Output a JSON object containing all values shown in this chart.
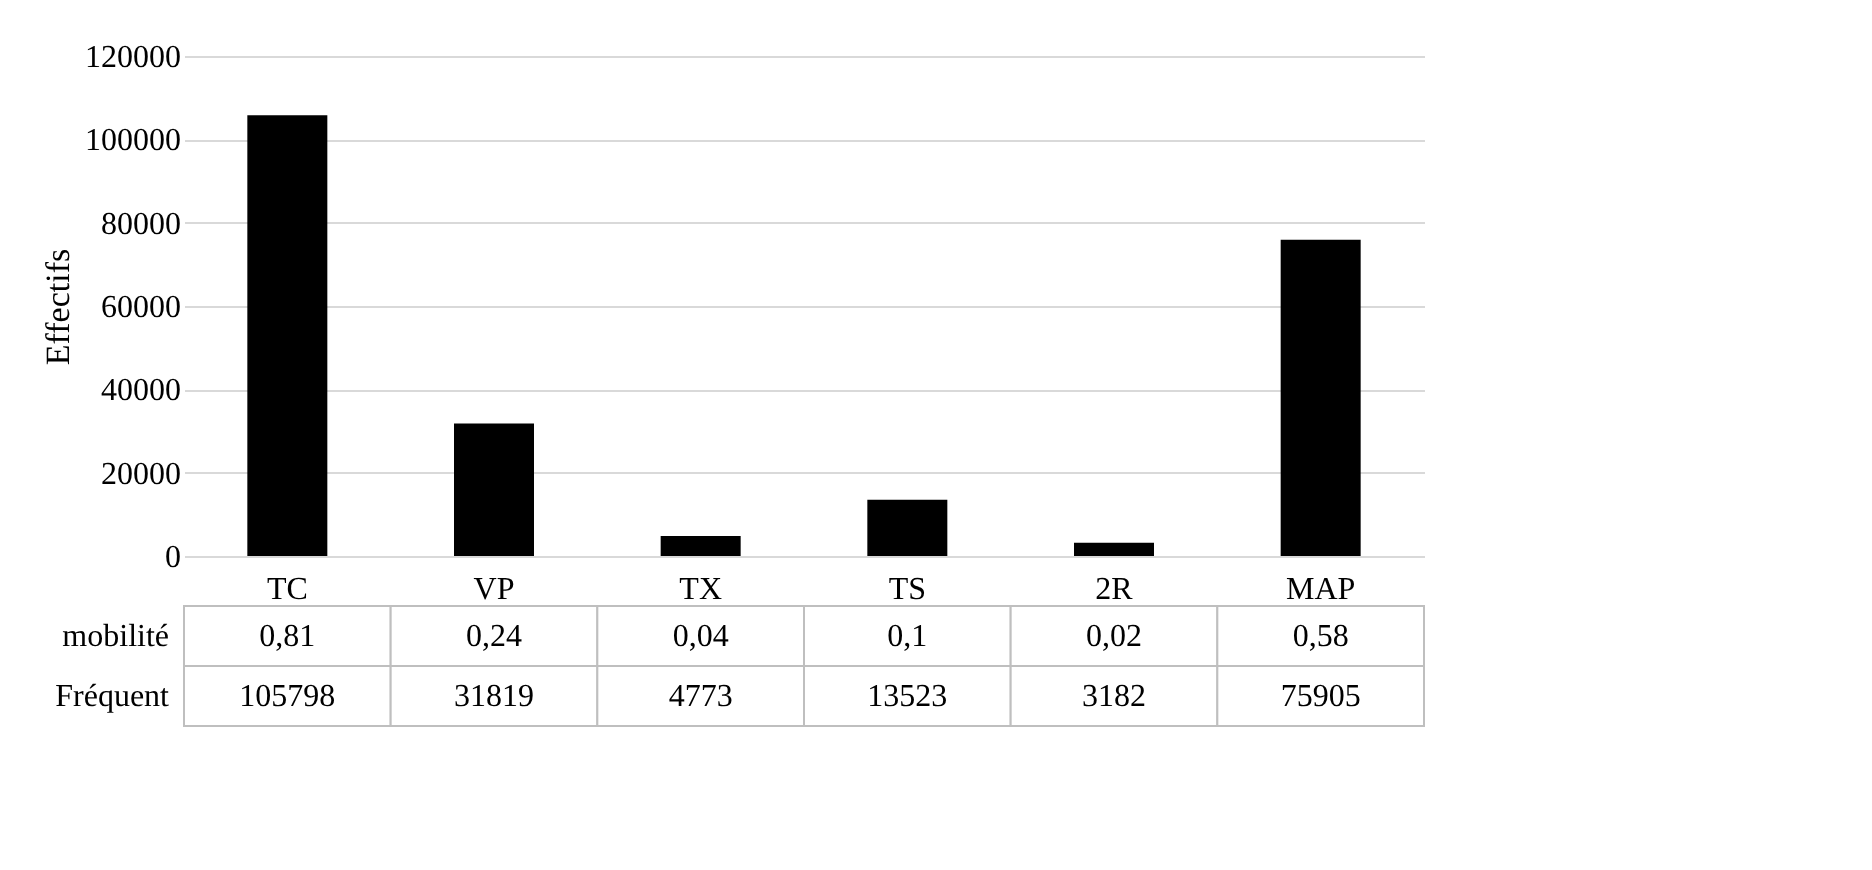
{
  "chart_data": {
    "type": "bar",
    "ylabel": "Effectifs",
    "categories": [
      "TC",
      "VP",
      "TX",
      "TS",
      "2R",
      "MAP"
    ],
    "series": [
      {
        "name": "Fréquent",
        "color": "#000000",
        "values": [
          105798,
          31819,
          4773,
          13523,
          3182,
          75905
        ]
      }
    ],
    "ylim": [
      0,
      120000
    ],
    "yticks": [
      0,
      20000,
      40000,
      60000,
      80000,
      100000,
      120000
    ],
    "grid": "y",
    "data_labels": true,
    "annotations": [
      "mobilité",
      "0,81",
      "0,24",
      "0,04",
      "0,1",
      "0,02",
      "0,58"
    ]
  }
}
